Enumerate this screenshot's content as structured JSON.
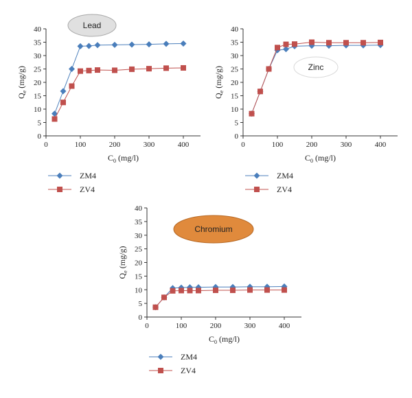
{
  "chart_data": [
    {
      "type": "line",
      "badge": "Lead",
      "colors": {
        "badge_fill": "#e0e0e0",
        "badge_stroke": "#a8a8a8"
      },
      "xlabel_main": "C",
      "xlabel_sub": "0",
      "xlabel_unit": " (mg/l)",
      "ylabel_main": "Q",
      "ylabel_sub": "e",
      "ylabel_unit": " (mg/g)",
      "xlim": [
        0,
        450
      ],
      "ylim": [
        0,
        40
      ],
      "xticks": [
        0,
        100,
        200,
        300,
        400
      ],
      "yticks": [
        0,
        5,
        10,
        15,
        20,
        25,
        30,
        35,
        40
      ],
      "legend_position": "bottom-left",
      "series": [
        {
          "name": "ZM4",
          "marker": "diamond",
          "color": "#4a7ebb",
          "x": [
            25,
            50,
            75,
            100,
            125,
            150,
            200,
            250,
            300,
            350,
            400
          ],
          "y": [
            8.3,
            16.7,
            25.0,
            33.5,
            33.6,
            33.9,
            34.0,
            34.1,
            34.2,
            34.4,
            34.5
          ]
        },
        {
          "name": "ZV4",
          "marker": "square",
          "color": "#c0504d",
          "x": [
            25,
            50,
            75,
            100,
            125,
            150,
            200,
            250,
            300,
            350,
            400
          ],
          "y": [
            6.3,
            12.5,
            18.6,
            24.2,
            24.4,
            24.6,
            24.5,
            24.9,
            25.1,
            25.3,
            25.4
          ]
        }
      ]
    },
    {
      "type": "line",
      "badge": "Zinc",
      "colors": {
        "badge_fill": "#ffffff",
        "badge_stroke": "#d8d8d8"
      },
      "xlabel_main": "C",
      "xlabel_sub": "0",
      "xlabel_unit": " (mg/l)",
      "ylabel_main": "Q",
      "ylabel_sub": "e",
      "ylabel_unit": " (mg/g)",
      "xlim": [
        0,
        450
      ],
      "ylim": [
        0,
        40
      ],
      "xticks": [
        0,
        100,
        200,
        300,
        400
      ],
      "yticks": [
        0,
        5,
        10,
        15,
        20,
        25,
        30,
        35,
        40
      ],
      "legend_position": "bottom-left",
      "series": [
        {
          "name": "ZM4",
          "marker": "diamond",
          "color": "#4a7ebb",
          "x": [
            25,
            50,
            75,
            100,
            125,
            150,
            200,
            250,
            300,
            350,
            400
          ],
          "y": [
            8.3,
            16.6,
            25.0,
            32.0,
            32.4,
            33.5,
            33.7,
            33.7,
            33.8,
            33.8,
            33.9
          ]
        },
        {
          "name": "ZV4",
          "marker": "square",
          "color": "#c0504d",
          "x": [
            25,
            50,
            75,
            100,
            125,
            150,
            200,
            250,
            300,
            350,
            400
          ],
          "y": [
            8.3,
            16.6,
            25.0,
            33.0,
            34.2,
            34.3,
            35.0,
            34.8,
            34.8,
            34.8,
            34.9
          ]
        }
      ]
    },
    {
      "type": "line",
      "badge": "Chromium",
      "colors": {
        "badge_fill": "#e08a3c",
        "badge_stroke": "#b86a26"
      },
      "xlabel_main": "C",
      "xlabel_sub": "0",
      "xlabel_unit": " (mg/l)",
      "ylabel_main": "Q",
      "ylabel_sub": "e",
      "ylabel_unit": " (mg/g)",
      "xlim": [
        0,
        450
      ],
      "ylim": [
        0,
        40
      ],
      "xticks": [
        0,
        100,
        200,
        300,
        400
      ],
      "yticks": [
        0,
        5,
        10,
        15,
        20,
        25,
        30,
        35,
        40
      ],
      "legend_position": "bottom-left",
      "series": [
        {
          "name": "ZM4",
          "marker": "diamond",
          "color": "#4a7ebb",
          "x": [
            25,
            50,
            75,
            100,
            125,
            150,
            200,
            250,
            300,
            350,
            400
          ],
          "y": [
            3.6,
            7.2,
            10.6,
            10.8,
            10.9,
            10.9,
            11.0,
            11.0,
            11.1,
            11.1,
            11.2
          ]
        },
        {
          "name": "ZV4",
          "marker": "square",
          "color": "#c0504d",
          "x": [
            25,
            50,
            75,
            100,
            125,
            150,
            200,
            250,
            300,
            350,
            400
          ],
          "y": [
            3.6,
            7.2,
            9.6,
            9.7,
            9.7,
            9.7,
            9.8,
            9.8,
            9.9,
            9.9,
            9.9
          ]
        }
      ]
    }
  ]
}
